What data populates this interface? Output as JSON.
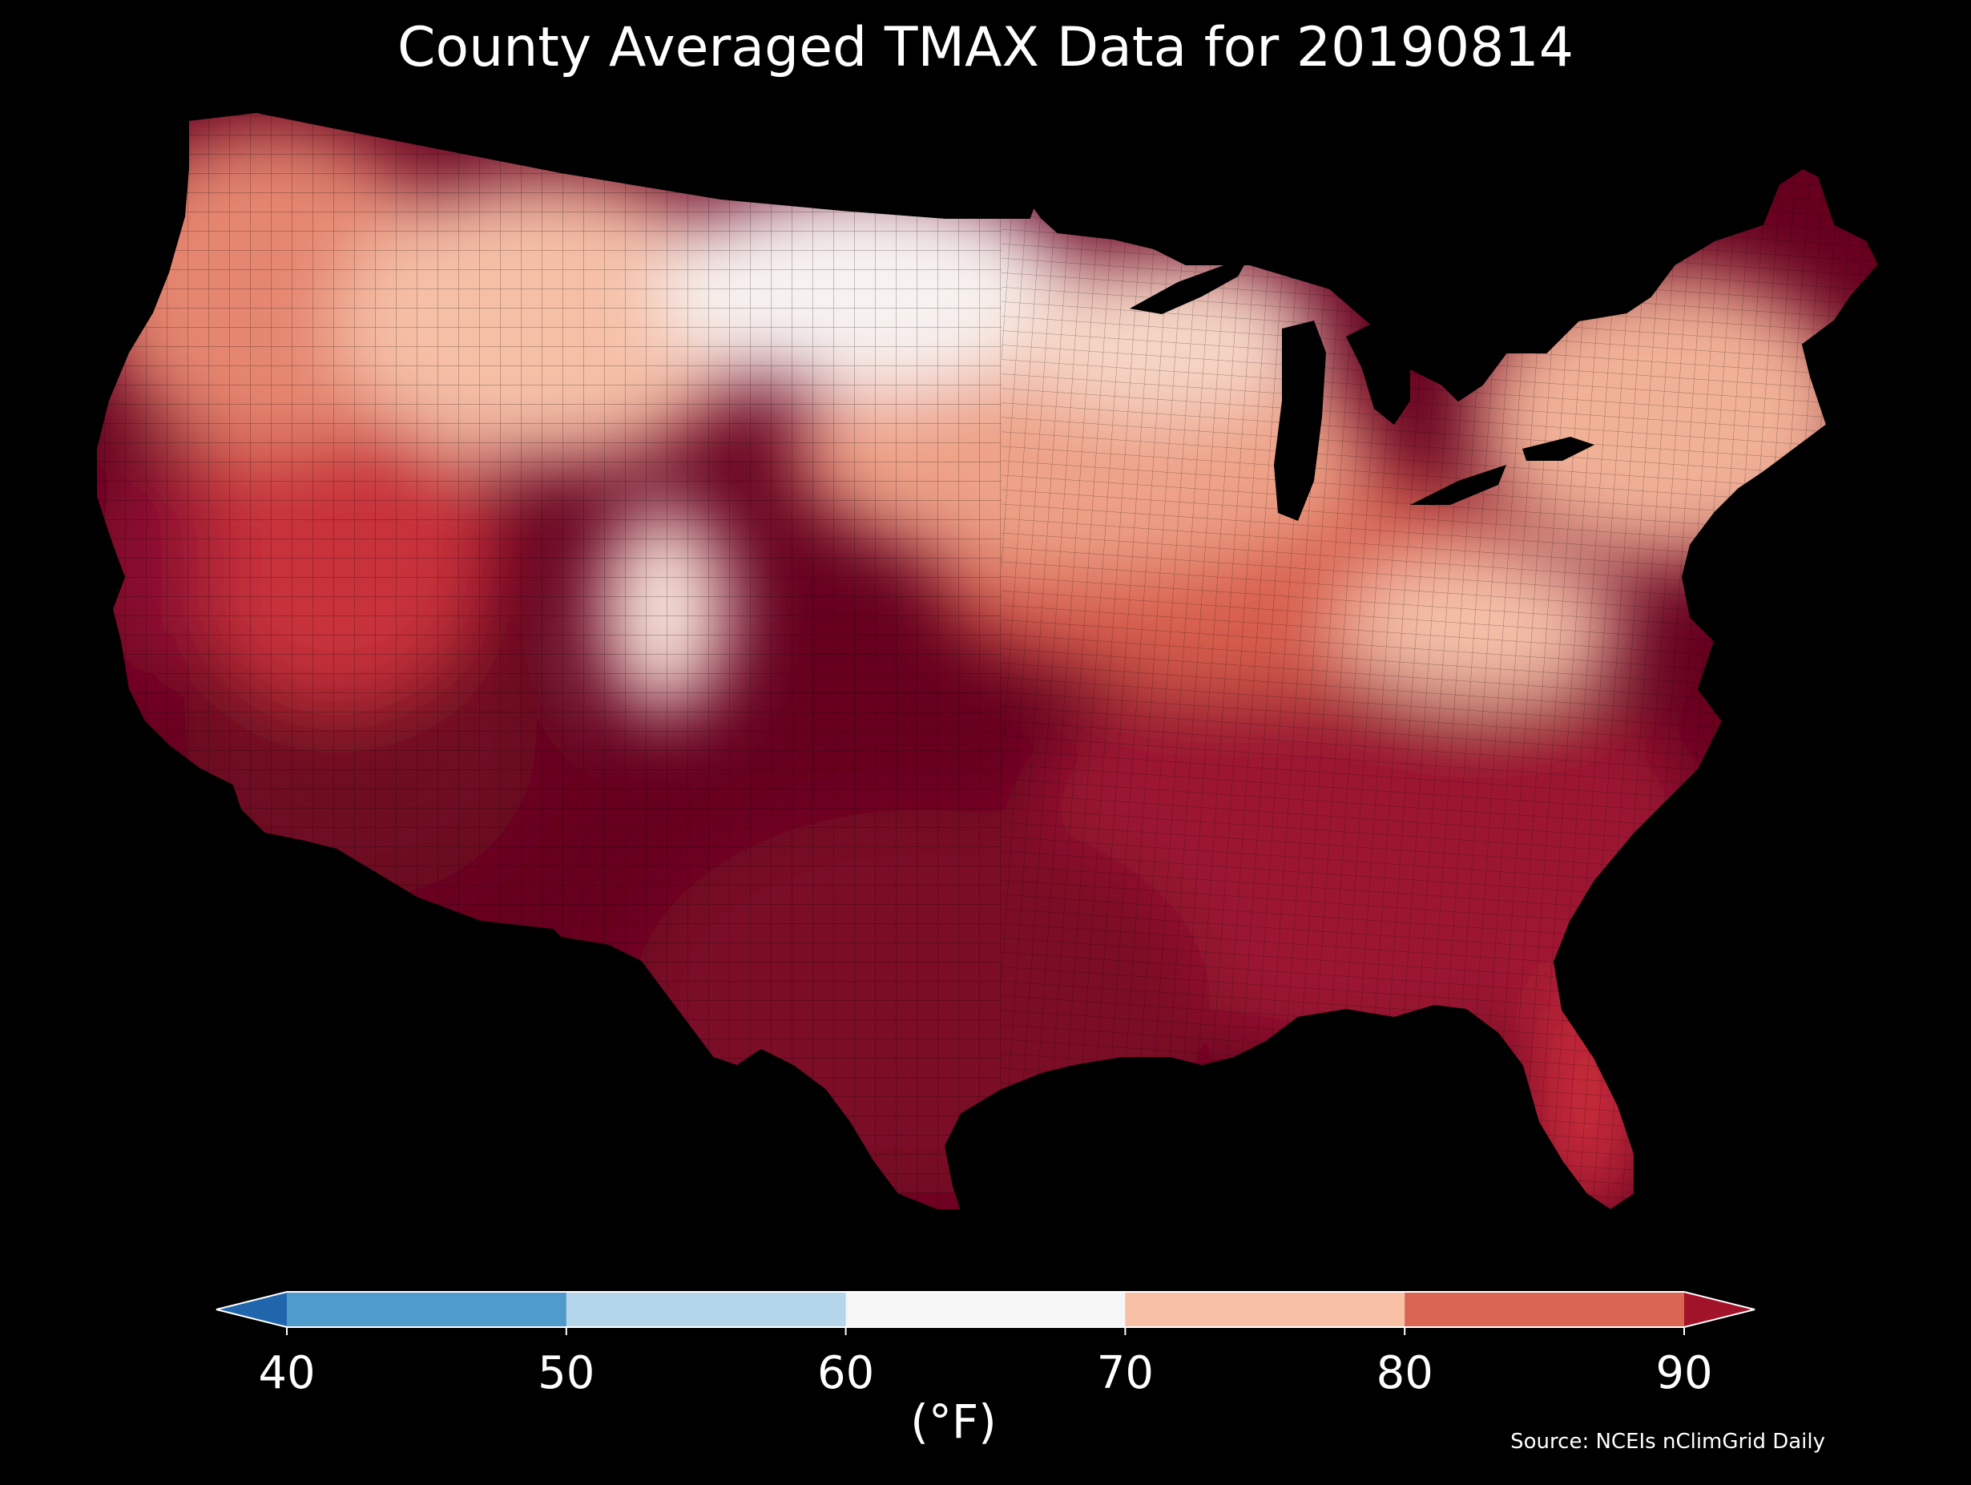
{
  "title": "County Averaged TMAX Data for 20190814",
  "units_label": "(°F)",
  "source": "Source: NCEIs nClimGrid Daily",
  "colorbar": {
    "ticks": [
      "40",
      "50",
      "60",
      "70",
      "80",
      "90"
    ],
    "bins": [
      {
        "range": "<40",
        "color": "#2166ac"
      },
      {
        "range": "40-50",
        "color": "#4f9bcb"
      },
      {
        "range": "50-60",
        "color": "#b4d6ea"
      },
      {
        "range": "60-70",
        "color": "#f6f6f6"
      },
      {
        "range": "70-80",
        "color": "#f8c0a4"
      },
      {
        "range": "80-90",
        "color": "#db6553"
      },
      {
        "range": ">90",
        "color": "#a11328"
      }
    ]
  },
  "map": {
    "region": "Contiguous United States, county level",
    "variable": "TMAX",
    "extent_color": "#67001f",
    "regional_fills": [
      {
        "region": "pacific-northwest",
        "color": "#e58670"
      },
      {
        "region": "northern-rockies",
        "color": "#f5bfa6"
      },
      {
        "region": "northern-plains",
        "color": "#f7f2f0"
      },
      {
        "region": "upper-midwest",
        "color": "#f6d6c6"
      },
      {
        "region": "colorado-rockies",
        "color": "#f9e4da"
      },
      {
        "region": "great-basin",
        "color": "#c8303b"
      },
      {
        "region": "desert-southwest",
        "color": "#6e0a22"
      },
      {
        "region": "central-california",
        "color": "#8d1030"
      },
      {
        "region": "southern-plains",
        "color": "#7b0b25"
      },
      {
        "region": "midwest",
        "color": "#eea287"
      },
      {
        "region": "ohio-valley",
        "color": "#d85f4e"
      },
      {
        "region": "appalachians",
        "color": "#f5c0a8"
      },
      {
        "region": "northeast",
        "color": "#f1b196"
      },
      {
        "region": "southeast",
        "color": "#9c1430"
      },
      {
        "region": "florida",
        "color": "#c72c3a"
      }
    ],
    "lake_color": "#000000"
  }
}
